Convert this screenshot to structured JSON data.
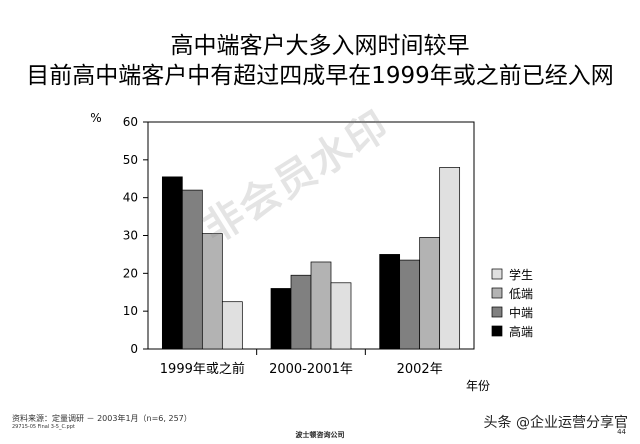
{
  "title": "高中端客户大多入网时间较早",
  "subtitle": "目前高中端客户中有超过四成早在1999年或之前已经入网",
  "chart_data": {
    "type": "bar",
    "ylabel": "%",
    "xlabel": "年份",
    "ylim": [
      0,
      60
    ],
    "yticks": [
      "0",
      "10",
      "20",
      "30",
      "40",
      "50",
      "60"
    ],
    "grid": false,
    "legend_position": "right",
    "categories": [
      "1999年或之前",
      "2000-2001年",
      "2002年"
    ],
    "series": [
      {
        "name": "高端",
        "color": "#000000",
        "values": [
          45.5,
          16,
          25
        ]
      },
      {
        "name": "中端",
        "color": "#808080",
        "values": [
          42,
          19.5,
          23.5
        ]
      },
      {
        "name": "低端",
        "color": "#b3b3b3",
        "values": [
          30.5,
          23,
          29.5
        ]
      },
      {
        "name": "学生",
        "color": "#e0e0e0",
        "values": [
          12.5,
          17.5,
          48
        ]
      }
    ]
  },
  "footer": {
    "source": "资料来源：定量调研 － 2003年1月（n=6, 257）",
    "file": "29715-05 Final 3-5_C.ppt",
    "company": "波士顿咨询公司",
    "page": "44"
  },
  "credit": "头条 @企业运营分享官",
  "watermark": "非会员水印"
}
